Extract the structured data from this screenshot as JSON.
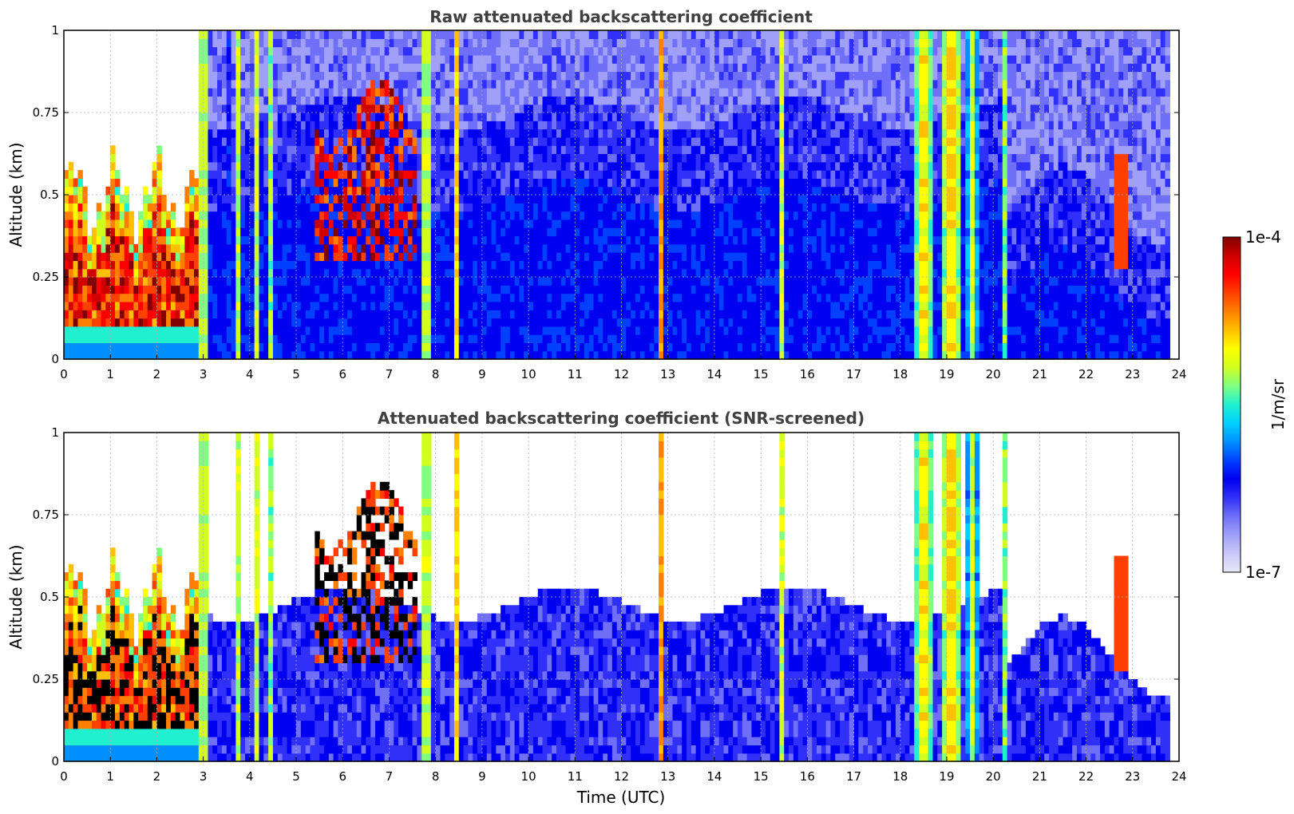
{
  "colorbar": {
    "unit_label": "1/m/sr",
    "max_label": "1e-4",
    "min_label": "1e-7",
    "colors": [
      "#e8e8f8",
      "#c8c8f8",
      "#a0a0f8",
      "#6f6ff8",
      "#3030f8",
      "#0000f0",
      "#0040ff",
      "#0090ff",
      "#00d0ff",
      "#20f0d0",
      "#80ff80",
      "#d0ff20",
      "#ffff00",
      "#ffc000",
      "#ff8000",
      "#ff4000",
      "#ff0000",
      "#d00000",
      "#800000"
    ]
  },
  "chart_data": [
    {
      "type": "heatmap",
      "title": "Raw attenuated backscattering coefficient",
      "xlabel": "",
      "ylabel": "Altitude (km)",
      "xlim": [
        0,
        24
      ],
      "ylim": [
        0,
        1
      ],
      "xticks": [
        0,
        1,
        2,
        3,
        4,
        5,
        6,
        7,
        8,
        9,
        10,
        11,
        12,
        13,
        14,
        15,
        16,
        17,
        18,
        19,
        20,
        21,
        22,
        23,
        24
      ],
      "yticks": [
        0,
        0.25,
        0.5,
        0.75,
        1
      ],
      "ytick_labels": [
        "0",
        "0.25",
        "0.5",
        "0.75",
        "1"
      ],
      "grid": true,
      "screened": false
    },
    {
      "type": "heatmap",
      "title": "Attenuated backscattering coefficient (SNR-screened)",
      "xlabel": "Time (UTC)",
      "ylabel": "Altitude (km)",
      "xlim": [
        0,
        24
      ],
      "ylim": [
        0,
        1
      ],
      "xticks": [
        0,
        1,
        2,
        3,
        4,
        5,
        6,
        7,
        8,
        9,
        10,
        11,
        12,
        13,
        14,
        15,
        16,
        17,
        18,
        19,
        20,
        21,
        22,
        23,
        24
      ],
      "yticks": [
        0,
        0.25,
        0.5,
        0.75,
        1
      ],
      "ytick_labels": [
        "0",
        "0.25",
        "0.5",
        "0.75",
        "1"
      ],
      "grid": true,
      "screened": true
    }
  ]
}
